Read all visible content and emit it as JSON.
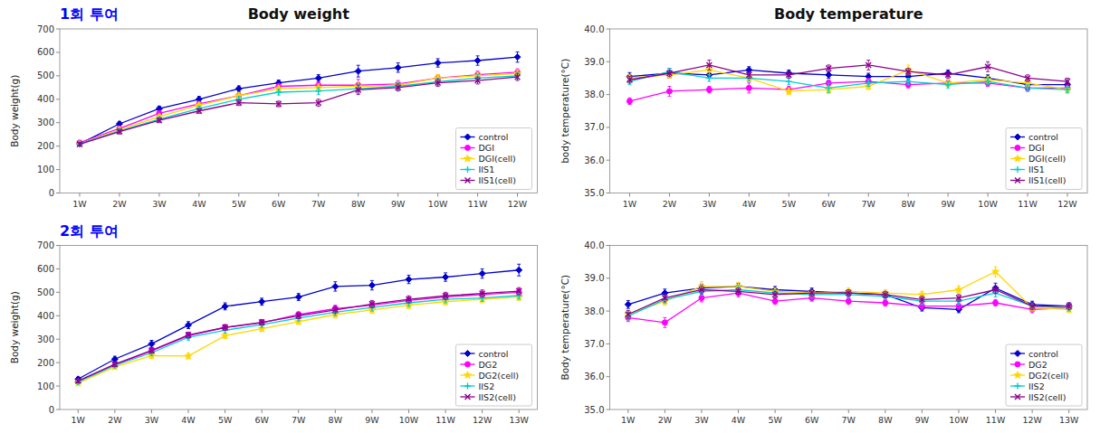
{
  "chart_data": [
    {
      "type": "line",
      "title": "Body weight",
      "annotations": [
        "1회 투여"
      ],
      "y_label": "Body weight(g)",
      "categories": [
        "1W",
        "2W",
        "3W",
        "4W",
        "5W",
        "6W",
        "7W",
        "8W",
        "9W",
        "10W",
        "11W",
        "12W"
      ],
      "series": [
        {
          "name": "control",
          "color": "#0000CD",
          "marker": "diamond",
          "values": [
            210,
            295,
            360,
            400,
            445,
            470,
            490,
            520,
            535,
            555,
            565,
            580
          ],
          "errors": [
            8,
            10,
            10,
            12,
            12,
            12,
            15,
            25,
            20,
            18,
            20,
            22
          ]
        },
        {
          "name": "DGI",
          "color": "#FF00FF",
          "marker": "circle",
          "values": [
            215,
            275,
            340,
            380,
            415,
            455,
            460,
            460,
            465,
            490,
            505,
            515
          ],
          "errors": [
            8,
            10,
            10,
            10,
            12,
            12,
            15,
            25,
            15,
            15,
            15,
            15
          ]
        },
        {
          "name": "DGI(cell)",
          "color": "#FFD700",
          "marker": "star",
          "values": [
            210,
            270,
            325,
            375,
            415,
            445,
            450,
            455,
            460,
            490,
            500,
            510
          ],
          "errors": [
            8,
            10,
            10,
            10,
            12,
            12,
            15,
            20,
            15,
            15,
            15,
            15
          ]
        },
        {
          "name": "IIS1",
          "color": "#00CDCD",
          "marker": "plus",
          "values": [
            210,
            265,
            315,
            360,
            400,
            430,
            435,
            445,
            455,
            475,
            490,
            500
          ],
          "errors": [
            8,
            10,
            10,
            10,
            12,
            12,
            15,
            20,
            15,
            15,
            15,
            15
          ]
        },
        {
          "name": "IIS1(cell)",
          "color": "#8B008B",
          "marker": "x",
          "values": [
            208,
            262,
            310,
            350,
            385,
            380,
            385,
            440,
            450,
            470,
            480,
            495
          ],
          "errors": [
            8,
            10,
            10,
            10,
            12,
            12,
            15,
            20,
            15,
            15,
            15,
            15
          ]
        }
      ],
      "ylim": [
        0,
        700
      ],
      "yticks": [
        0,
        100,
        200,
        300,
        400,
        500,
        600,
        700
      ],
      "legend": "lower right",
      "grid": false
    },
    {
      "type": "line",
      "title": "Body temperature",
      "y_label": "body temperature(°C)",
      "categories": [
        "1W",
        "2W",
        "3W",
        "4W",
        "5W",
        "6W",
        "7W",
        "8W",
        "9W",
        "10W",
        "11W",
        "12W"
      ],
      "series": [
        {
          "name": "control",
          "color": "#0000CD",
          "marker": "diamond",
          "values": [
            38.55,
            38.65,
            38.6,
            38.75,
            38.65,
            38.6,
            38.55,
            38.55,
            38.65,
            38.5,
            38.3,
            38.3
          ],
          "errors": [
            0.12,
            0.15,
            0.1,
            0.1,
            0.1,
            0.1,
            0.1,
            0.1,
            0.1,
            0.1,
            0.1,
            0.1
          ]
        },
        {
          "name": "DGI",
          "color": "#FF00FF",
          "marker": "circle",
          "values": [
            37.8,
            38.1,
            38.15,
            38.2,
            38.15,
            38.35,
            38.4,
            38.3,
            38.35,
            38.35,
            38.2,
            38.2
          ],
          "errors": [
            0.1,
            0.15,
            0.1,
            0.15,
            0.1,
            0.1,
            0.1,
            0.1,
            0.1,
            0.1,
            0.1,
            0.1
          ]
        },
        {
          "name": "DGI(cell)",
          "color": "#FFD700",
          "marker": "star",
          "values": [
            38.5,
            38.6,
            38.75,
            38.5,
            38.1,
            38.15,
            38.25,
            38.75,
            38.35,
            38.45,
            38.35,
            38.15
          ],
          "errors": [
            0.1,
            0.1,
            0.15,
            0.1,
            0.1,
            0.1,
            0.1,
            0.15,
            0.1,
            0.1,
            0.1,
            0.1
          ]
        },
        {
          "name": "IIS1",
          "color": "#00CDCD",
          "marker": "plus",
          "values": [
            38.4,
            38.7,
            38.5,
            38.5,
            38.4,
            38.2,
            38.35,
            38.4,
            38.3,
            38.4,
            38.2,
            38.15
          ],
          "errors": [
            0.1,
            0.1,
            0.1,
            0.1,
            0.1,
            0.15,
            0.1,
            0.1,
            0.1,
            0.1,
            0.1,
            0.1
          ]
        },
        {
          "name": "IIS1(cell)",
          "color": "#8B008B",
          "marker": "x",
          "values": [
            38.45,
            38.65,
            38.9,
            38.6,
            38.6,
            38.8,
            38.9,
            38.7,
            38.6,
            38.85,
            38.5,
            38.4
          ],
          "errors": [
            0.1,
            0.1,
            0.15,
            0.1,
            0.1,
            0.1,
            0.15,
            0.1,
            0.1,
            0.15,
            0.1,
            0.1
          ]
        }
      ],
      "ylim": [
        35.0,
        40.0
      ],
      "yticks": [
        {
          "value": 35.0,
          "label": "35.0"
        },
        {
          "value": 36.0,
          "label": "36.0"
        },
        {
          "value": 37.0,
          "label": "37.0"
        },
        {
          "value": 38.0,
          "label": "38.0"
        },
        {
          "value": 39.0,
          "label": "39.0"
        },
        {
          "value": 40.0,
          "label": "40.0"
        }
      ],
      "legend": "lower right",
      "grid": false
    },
    {
      "type": "line",
      "annotations": [
        "2회 투여"
      ],
      "y_label": "Body weight(g)",
      "categories": [
        "1W",
        "2W",
        "3W",
        "4W",
        "5W",
        "6W",
        "7W",
        "8W",
        "9W",
        "10W",
        "11W",
        "12W",
        "13W"
      ],
      "series": [
        {
          "name": "control",
          "color": "#0000CD",
          "marker": "diamond",
          "values": [
            130,
            215,
            280,
            360,
            440,
            460,
            480,
            525,
            530,
            555,
            565,
            580,
            595
          ],
          "errors": [
            8,
            12,
            15,
            15,
            15,
            15,
            15,
            20,
            20,
            18,
            18,
            20,
            25
          ]
        },
        {
          "name": "DG2",
          "color": "#FF00FF",
          "marker": "circle",
          "values": [
            120,
            190,
            250,
            315,
            350,
            370,
            405,
            430,
            445,
            465,
            480,
            490,
            500
          ],
          "errors": [
            8,
            10,
            12,
            12,
            12,
            12,
            12,
            15,
            15,
            15,
            15,
            15,
            15
          ]
        },
        {
          "name": "DG2(cell)",
          "color": "#FFD700",
          "marker": "star",
          "values": [
            112,
            182,
            230,
            228,
            315,
            345,
            375,
            405,
            425,
            445,
            460,
            470,
            480
          ],
          "errors": [
            8,
            10,
            12,
            12,
            12,
            12,
            12,
            15,
            15,
            15,
            15,
            15,
            15
          ]
        },
        {
          "name": "IIS2",
          "color": "#00CDCD",
          "marker": "plus",
          "values": [
            118,
            188,
            242,
            308,
            338,
            362,
            390,
            415,
            435,
            455,
            470,
            476,
            486
          ],
          "errors": [
            8,
            10,
            12,
            12,
            12,
            12,
            12,
            15,
            15,
            15,
            15,
            15,
            15
          ]
        },
        {
          "name": "IIS2(cell)",
          "color": "#8B008B",
          "marker": "x",
          "values": [
            122,
            193,
            252,
            318,
            350,
            372,
            400,
            425,
            450,
            470,
            485,
            495,
            505
          ],
          "errors": [
            8,
            10,
            12,
            12,
            12,
            12,
            12,
            15,
            15,
            15,
            15,
            15,
            15
          ]
        }
      ],
      "ylim": [
        0,
        700
      ],
      "yticks": [
        0,
        100,
        200,
        300,
        400,
        500,
        600,
        700
      ],
      "legend": "lower right",
      "grid": false
    },
    {
      "type": "line",
      "y_label": "Body temperature(°C)",
      "categories": [
        "1W",
        "2W",
        "3W",
        "4W",
        "5W",
        "6W",
        "7W",
        "8W",
        "9W",
        "10W",
        "11W",
        "12W",
        "13W"
      ],
      "series": [
        {
          "name": "control",
          "color": "#0000CD",
          "marker": "diamond",
          "values": [
            38.2,
            38.55,
            38.7,
            38.75,
            38.65,
            38.6,
            38.55,
            38.5,
            38.1,
            38.05,
            38.7,
            38.2,
            38.15
          ],
          "errors": [
            0.12,
            0.12,
            0.12,
            0.1,
            0.1,
            0.1,
            0.1,
            0.1,
            0.1,
            0.1,
            0.15,
            0.1,
            0.1
          ]
        },
        {
          "name": "DG2",
          "color": "#FF00FF",
          "marker": "circle",
          "values": [
            37.8,
            37.65,
            38.4,
            38.55,
            38.3,
            38.4,
            38.3,
            38.25,
            38.15,
            38.15,
            38.25,
            38.05,
            38.1
          ],
          "errors": [
            0.12,
            0.15,
            0.12,
            0.12,
            0.1,
            0.1,
            0.1,
            0.1,
            0.1,
            0.1,
            0.1,
            0.1,
            0.1
          ]
        },
        {
          "name": "DG2(cell)",
          "color": "#FFD700",
          "marker": "star",
          "values": [
            37.9,
            38.3,
            38.75,
            38.75,
            38.6,
            38.55,
            38.6,
            38.55,
            38.5,
            38.65,
            39.2,
            38.1,
            38.05
          ],
          "errors": [
            0.12,
            0.12,
            0.15,
            0.12,
            0.1,
            0.1,
            0.1,
            0.1,
            0.1,
            0.12,
            0.15,
            0.1,
            0.1
          ]
        },
        {
          "name": "IIS2",
          "color": "#00CDCD",
          "marker": "plus",
          "values": [
            37.85,
            38.35,
            38.6,
            38.65,
            38.55,
            38.5,
            38.5,
            38.45,
            38.3,
            38.3,
            38.55,
            38.15,
            38.1
          ],
          "errors": [
            0.12,
            0.12,
            0.12,
            0.12,
            0.1,
            0.1,
            0.1,
            0.1,
            0.1,
            0.1,
            0.12,
            0.1,
            0.1
          ]
        },
        {
          "name": "IIS2(cell)",
          "color": "#8B008B",
          "marker": "x",
          "values": [
            37.9,
            38.4,
            38.65,
            38.6,
            38.5,
            38.55,
            38.55,
            38.5,
            38.35,
            38.4,
            38.65,
            38.15,
            38.15
          ],
          "errors": [
            0.12,
            0.12,
            0.12,
            0.1,
            0.1,
            0.1,
            0.1,
            0.1,
            0.1,
            0.1,
            0.12,
            0.1,
            0.1
          ]
        }
      ],
      "ylim": [
        35.0,
        40.0
      ],
      "yticks": [
        {
          "value": 35.0,
          "label": "35.0"
        },
        {
          "value": 36.0,
          "label": "36.0"
        },
        {
          "value": 37.0,
          "label": "37.0"
        },
        {
          "value": 38.0,
          "label": "38.0"
        },
        {
          "value": 39.0,
          "label": "39.0"
        },
        {
          "value": 40.0,
          "label": "40.0"
        }
      ],
      "legend": "lower right",
      "grid": false
    }
  ]
}
